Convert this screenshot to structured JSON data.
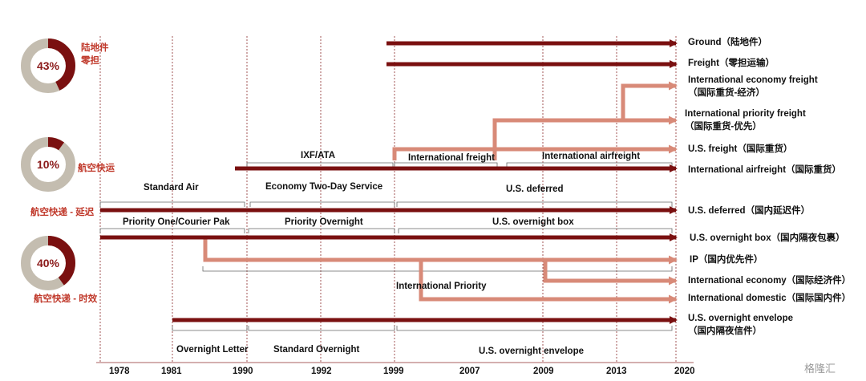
{
  "colors": {
    "dark_arrow": "#7a1010",
    "light_arrow": "#d88a78",
    "dashed_line": "#8b2a2a",
    "donut_track": "#c4bdb0",
    "label_red": "#c0392b"
  },
  "donuts": [
    {
      "percent": 43,
      "label": "43%",
      "caption_line1": "陆地件",
      "caption_line2": "零担"
    },
    {
      "percent": 10,
      "label": "10%",
      "caption_line1": "航空快运",
      "caption_line2": ""
    },
    {
      "percent": 40,
      "label": "40%",
      "caption_line1": "航空快递 - 时效",
      "caption_line2": ""
    }
  ],
  "side_label_deferred": "航空快递 - 延迟",
  "years": [
    "1978",
    "1981",
    "1990",
    "1992",
    "1999",
    "2007",
    "2009",
    "2013",
    "2020"
  ],
  "right_labels": [
    "Ground（陆地件）",
    "Freight（零担运输）",
    "International economy freight",
    "（国际重货-经济）",
    "International priority freight",
    "（国际重货-优先）",
    "U.S. freight（国际重货）",
    "International airfreight（国际重货）",
    "U.S. deferred（国内延迟件）",
    "U.S. overnight box（国内隔夜包裹）",
    "IP（国内优先件）",
    "International economy（国际经济件）",
    "International domestic（国际国内件）",
    "U.S. overnight envelope",
    "（国内隔夜信件）"
  ],
  "segment_labels": {
    "ixf_ata": "IXF/ATA",
    "international_freight": "International freight",
    "international_airfreight": "International airfreight",
    "standard_air": "Standard Air",
    "economy_two_day": "Economy Two-Day Service",
    "us_deferred": "U.S. deferred",
    "priority_one": "Priority One/Courier Pak",
    "priority_overnight": "Priority Overnight",
    "us_overnight_box": "U.S. overnight box",
    "international_priority": "International Priority",
    "overnight_letter": "Overnight Letter",
    "standard_overnight": "Standard Overnight",
    "us_overnight_envelope": "U.S. overnight envelope"
  },
  "watermark": "格隆汇"
}
